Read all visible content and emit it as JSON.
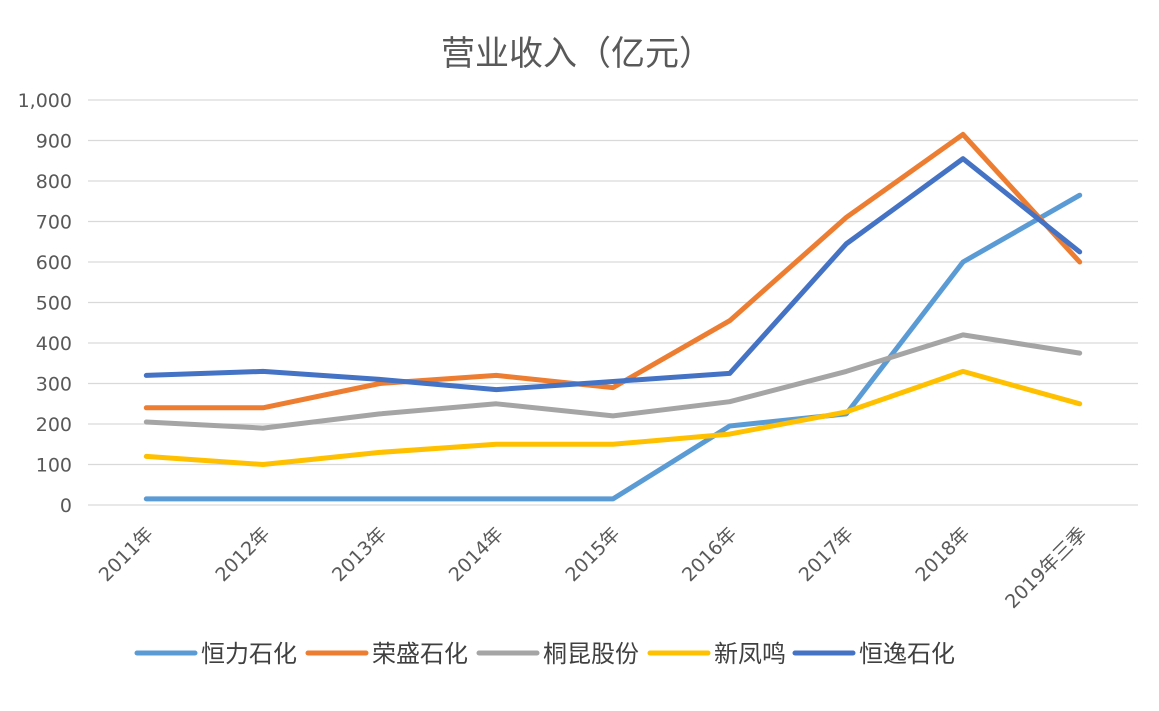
{
  "chart_data": {
    "type": "line",
    "title": "营业收入（亿元）",
    "categories": [
      "2011年",
      "2012年",
      "2013年",
      "2014年",
      "2015年",
      "2016年",
      "2017年",
      "2018年",
      "2019年三季"
    ],
    "y_ticks": [
      "0",
      "100",
      "200",
      "300",
      "400",
      "500",
      "600",
      "700",
      "800",
      "900",
      "1,000"
    ],
    "ylim": [
      0,
      1000
    ],
    "grid": true,
    "legend_position": "bottom",
    "series": [
      {
        "name": "恒力石化",
        "color": "#5b9bd5",
        "values": [
          15,
          15,
          15,
          15,
          15,
          195,
          225,
          600,
          765
        ]
      },
      {
        "name": "荣盛石化",
        "color": "#ed7d31",
        "values": [
          240,
          240,
          300,
          320,
          290,
          455,
          710,
          915,
          600
        ]
      },
      {
        "name": "桐昆股份",
        "color": "#a5a5a5",
        "values": [
          205,
          190,
          225,
          250,
          220,
          255,
          330,
          420,
          375
        ]
      },
      {
        "name": "新凤鸣",
        "color": "#ffc000",
        "values": [
          120,
          100,
          130,
          150,
          150,
          175,
          230,
          330,
          250
        ]
      },
      {
        "name": "恒逸石化",
        "color": "#4472c4",
        "values": [
          320,
          330,
          310,
          285,
          305,
          325,
          645,
          855,
          625
        ]
      }
    ]
  }
}
